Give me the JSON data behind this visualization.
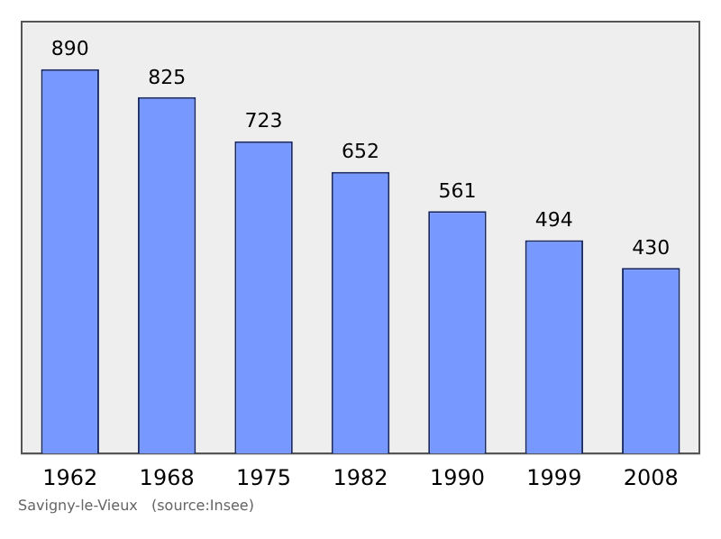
{
  "chart_data": {
    "type": "bar",
    "categories": [
      "1962",
      "1968",
      "1975",
      "1982",
      "1990",
      "1999",
      "2008"
    ],
    "values": [
      890,
      825,
      723,
      652,
      561,
      494,
      430
    ],
    "color": "#7799ff",
    "data_labels": true,
    "grid": false,
    "legend": false,
    "tick_labels": "x",
    "annotations": [
      "Savigny-le-Vieux   (source:Insee)"
    ]
  }
}
